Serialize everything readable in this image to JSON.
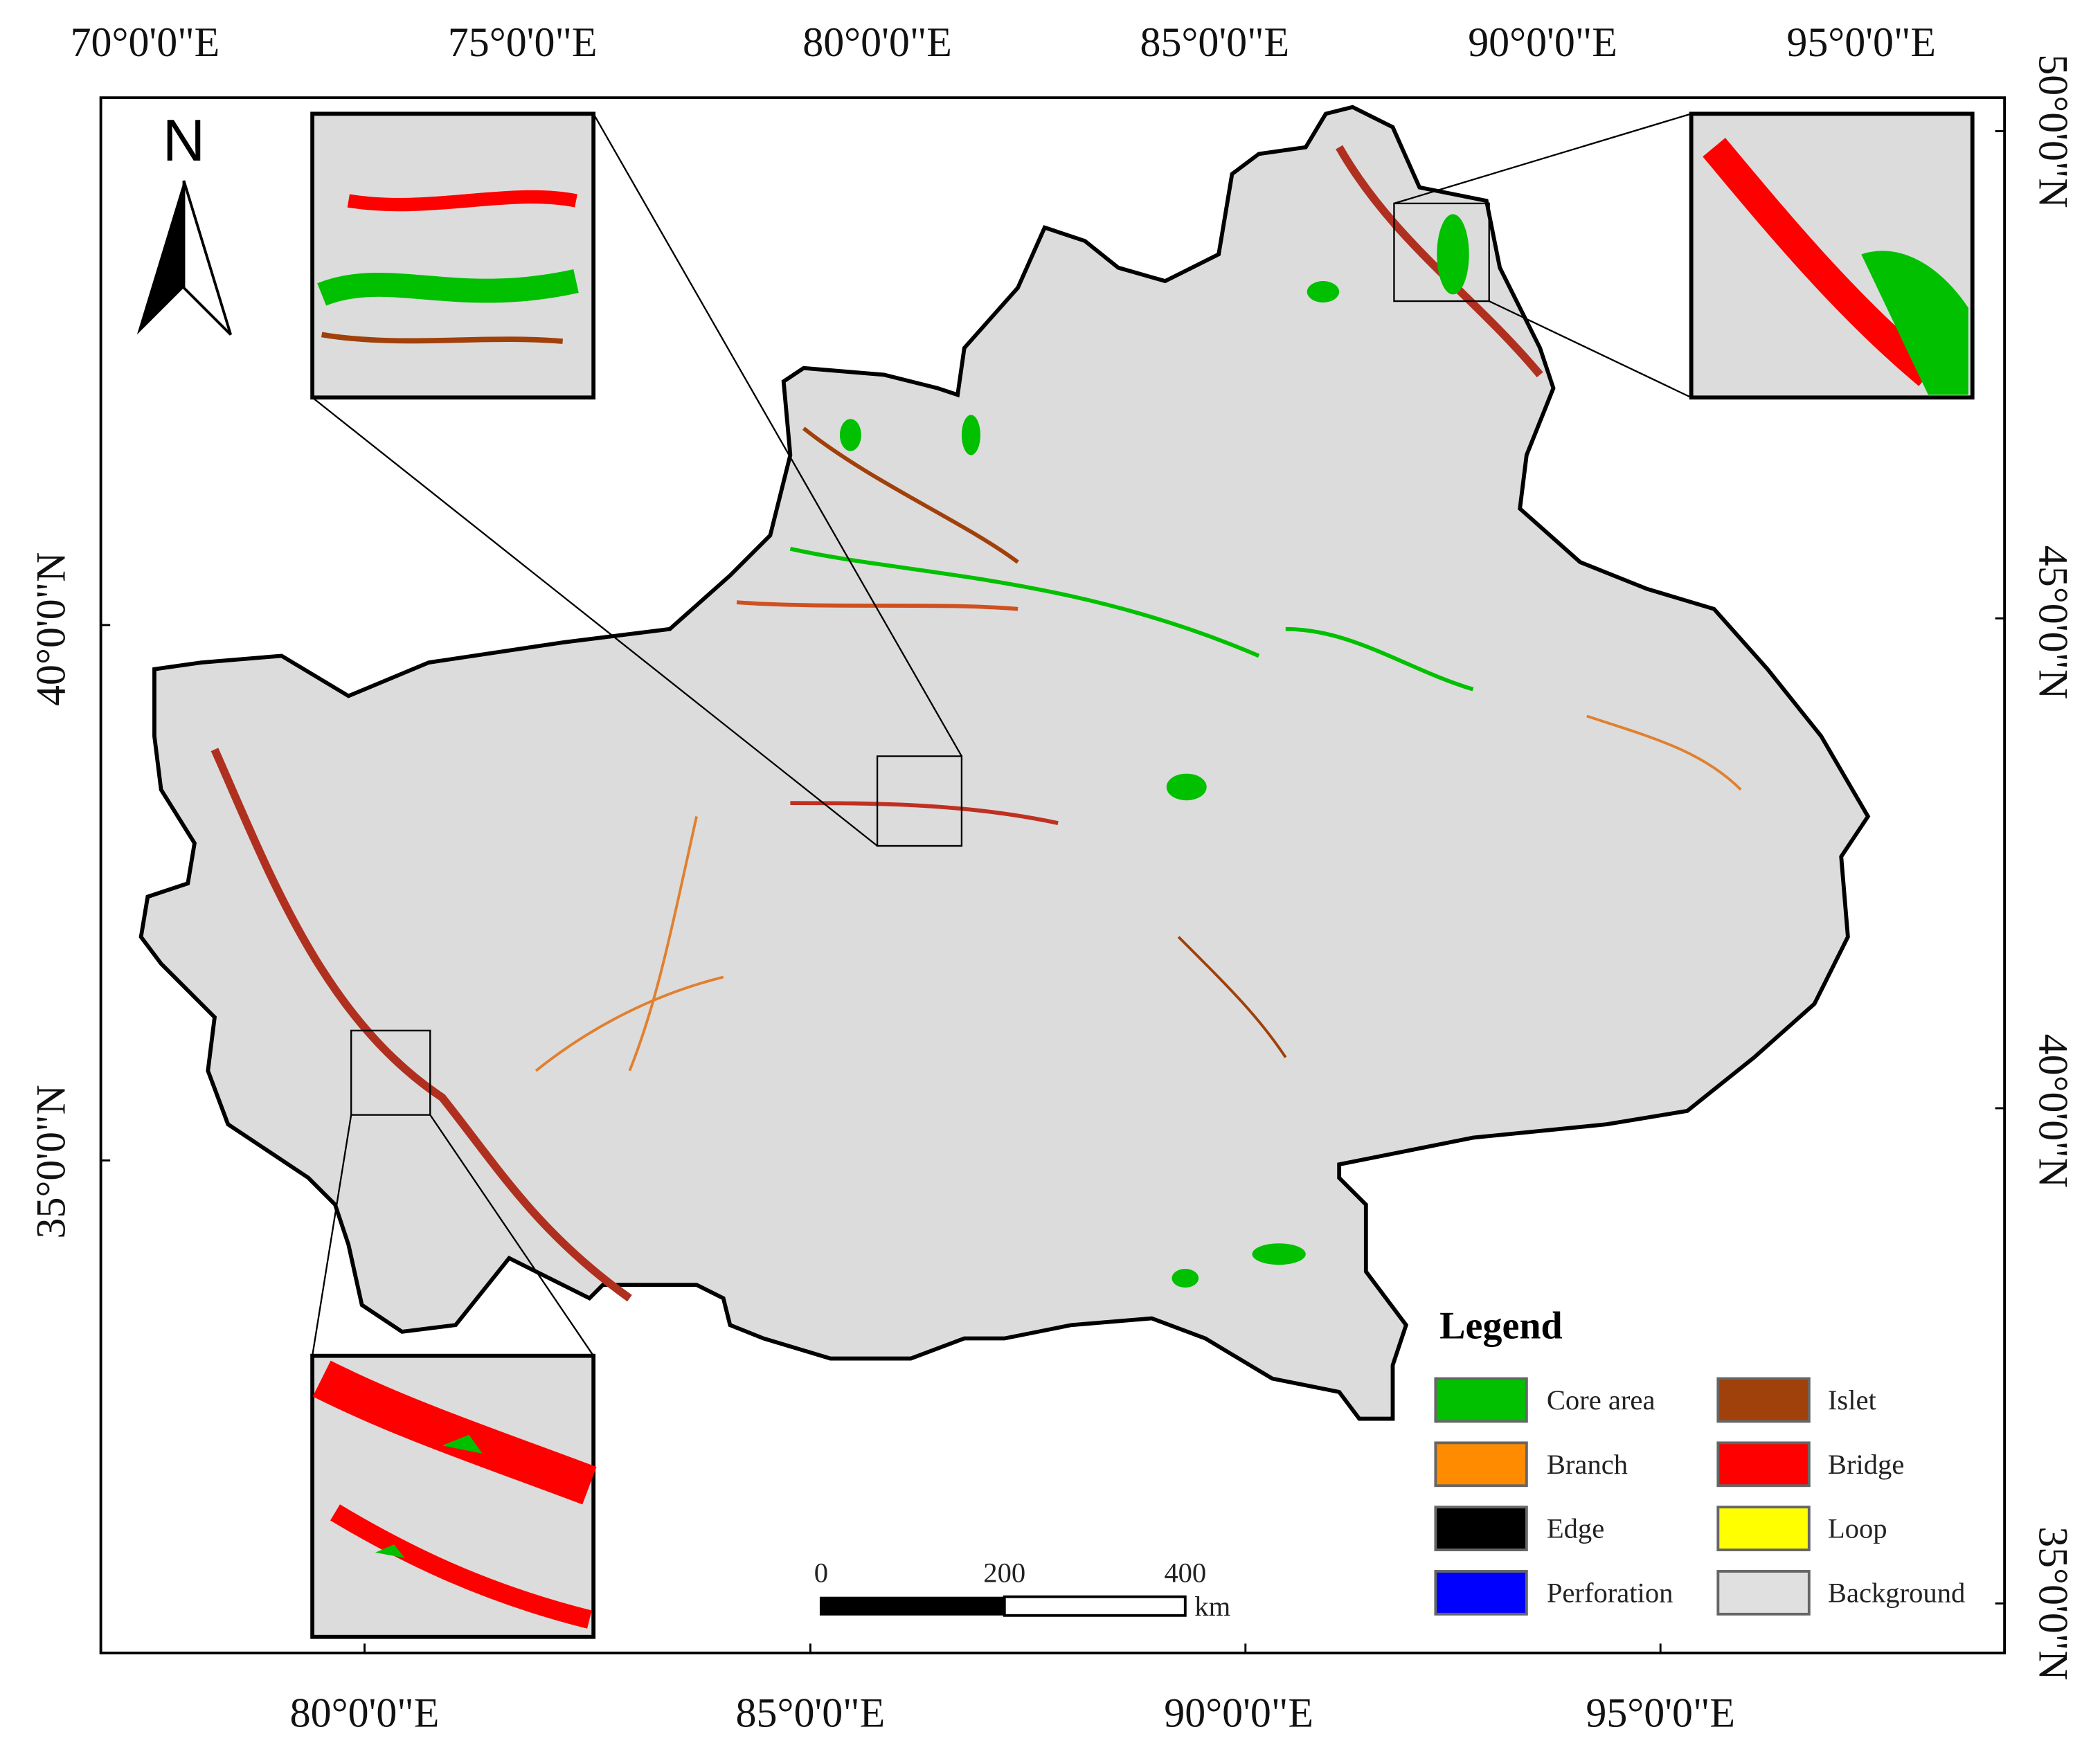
{
  "map": {
    "top_labels": [
      "70°0'0\"E",
      "75°0'0\"E",
      "80°0'0\"E",
      "85°0'0\"E",
      "90°0'0\"E",
      "95°0'0\"E"
    ],
    "bottom_labels": [
      "80°0'0\"E",
      "85°0'0\"E",
      "90°0'0\"E",
      "95°0'0\"E"
    ],
    "left_labels": [
      "40°0'0\"N",
      "35°0'0\"N"
    ],
    "right_labels": [
      "50°0'0\"N",
      "45°0'0\"N",
      "40°0'0\"N",
      "35°0'0\"N"
    ],
    "north_label": "N",
    "legend": {
      "title": "Legend",
      "items": [
        {
          "label": "Core area",
          "color": "#00c000"
        },
        {
          "label": "Branch",
          "color": "#ff8c00"
        },
        {
          "label": "Edge",
          "color": "#000000"
        },
        {
          "label": "Perforation",
          "color": "#0000ff"
        },
        {
          "label": "Islet",
          "color": "#a0400a"
        },
        {
          "label": "Bridge",
          "color": "#ff0000"
        },
        {
          "label": "Loop",
          "color": "#ffff00"
        },
        {
          "label": "Background",
          "color": "#e0e0e0"
        }
      ]
    },
    "scale_bar": {
      "labels": [
        "0",
        "200",
        "400"
      ],
      "unit": "km"
    }
  }
}
